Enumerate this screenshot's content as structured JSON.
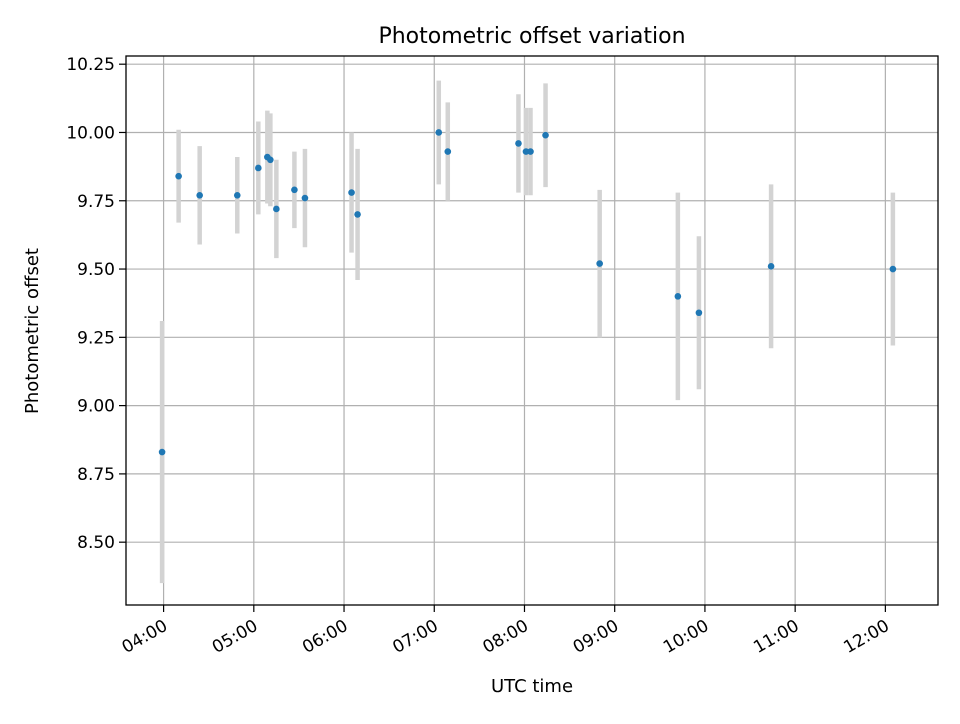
{
  "chart_data": {
    "type": "scatter",
    "title": "Photometric offset variation",
    "xlabel": "UTC time",
    "ylabel": "Photometric offset",
    "x_ticks": [
      "04:00",
      "05:00",
      "06:00",
      "07:00",
      "08:00",
      "09:00",
      "10:00",
      "11:00",
      "12:00"
    ],
    "y_ticks": [
      "8.50",
      "8.75",
      "9.00",
      "9.25",
      "9.50",
      "9.75",
      "10.00",
      "10.25"
    ],
    "xlim": [
      "03:35",
      "12:35"
    ],
    "ylim": [
      8.27,
      10.28
    ],
    "grid": true,
    "colors": {
      "point": "#1f77b4",
      "errorbar": "#d3d3d3",
      "grid": "#b0b0b0"
    },
    "points": [
      {
        "x": "03:59",
        "y": 8.83,
        "err": 0.48
      },
      {
        "x": "04:10",
        "y": 9.84,
        "err": 0.17
      },
      {
        "x": "04:24",
        "y": 9.77,
        "err": 0.18
      },
      {
        "x": "04:49",
        "y": 9.77,
        "err": 0.14
      },
      {
        "x": "05:03",
        "y": 9.87,
        "err": 0.17
      },
      {
        "x": "05:09",
        "y": 9.91,
        "err": 0.17
      },
      {
        "x": "05:11",
        "y": 9.9,
        "err": 0.17
      },
      {
        "x": "05:15",
        "y": 9.72,
        "err": 0.18
      },
      {
        "x": "05:27",
        "y": 9.79,
        "err": 0.14
      },
      {
        "x": "05:34",
        "y": 9.76,
        "err": 0.18
      },
      {
        "x": "06:05",
        "y": 9.78,
        "err": 0.22
      },
      {
        "x": "06:09",
        "y": 9.7,
        "err": 0.24
      },
      {
        "x": "07:03",
        "y": 10.0,
        "err": 0.19
      },
      {
        "x": "07:09",
        "y": 9.93,
        "err": 0.18
      },
      {
        "x": "07:56",
        "y": 9.96,
        "err": 0.18
      },
      {
        "x": "08:01",
        "y": 9.93,
        "err": 0.16
      },
      {
        "x": "08:04",
        "y": 9.93,
        "err": 0.16
      },
      {
        "x": "08:14",
        "y": 9.99,
        "err": 0.19
      },
      {
        "x": "08:50",
        "y": 9.52,
        "err": 0.27
      },
      {
        "x": "09:42",
        "y": 9.4,
        "err": 0.38
      },
      {
        "x": "09:56",
        "y": 9.34,
        "err": 0.28
      },
      {
        "x": "10:44",
        "y": 9.51,
        "err": 0.3
      },
      {
        "x": "12:05",
        "y": 9.5,
        "err": 0.28
      }
    ]
  }
}
